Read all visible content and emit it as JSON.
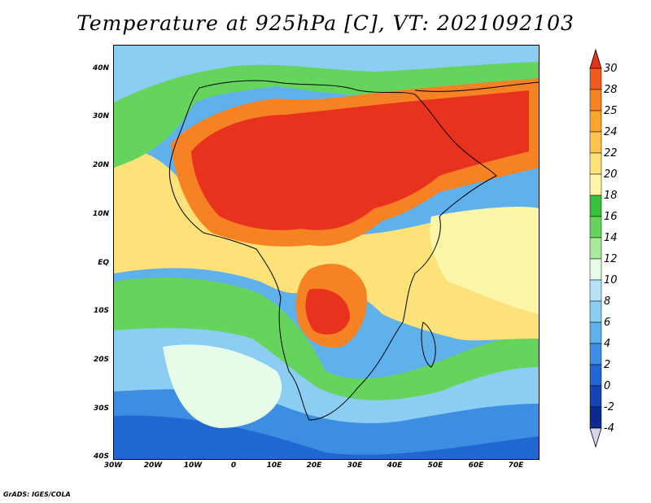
{
  "title": "Temperature at 925hPa [C], VT: 2021092103",
  "credit": "GrADS: IGES/COLA",
  "map": {
    "lon_range": [
      -30,
      76
    ],
    "lat_range": [
      -40,
      45
    ],
    "lat_ticks": [
      "40N",
      "30N",
      "20N",
      "10N",
      "EQ",
      "10S",
      "20S",
      "30S",
      "40S"
    ],
    "lon_ticks": [
      "30W",
      "20W",
      "10W",
      "0",
      "10E",
      "20E",
      "30E",
      "40E",
      "50E",
      "60E",
      "70E"
    ]
  },
  "colorbar": {
    "labels": [
      "30",
      "28",
      "25",
      "24",
      "22",
      "20",
      "18",
      "16",
      "14",
      "12",
      "10",
      "8",
      "6",
      "4",
      "2",
      "0",
      "-2",
      "-4"
    ],
    "colors": {
      "c_ge30": "#e8321e",
      "c28_30": "#f05a1e",
      "c25_28": "#f78223",
      "c24_25": "#fba52e",
      "c22_24": "#fdc450",
      "c20_22": "#fde27a",
      "c18_20": "#fdf6a8",
      "c16_18": "#36c03c",
      "c14_16": "#64d45c",
      "c12_14": "#a8ea9a",
      "c10_12": "#e6fbe8",
      "c8_10": "#b6e3f8",
      "c6_8": "#8ccdf3",
      "c4_6": "#5fb1ec",
      "c2_4": "#3c8ee2",
      "c0_2": "#2067d3",
      "cm2_0": "#1444b6",
      "cm4_m2": "#0c2a8e",
      "c_lt_m4": "#d8d4ef"
    }
  }
}
